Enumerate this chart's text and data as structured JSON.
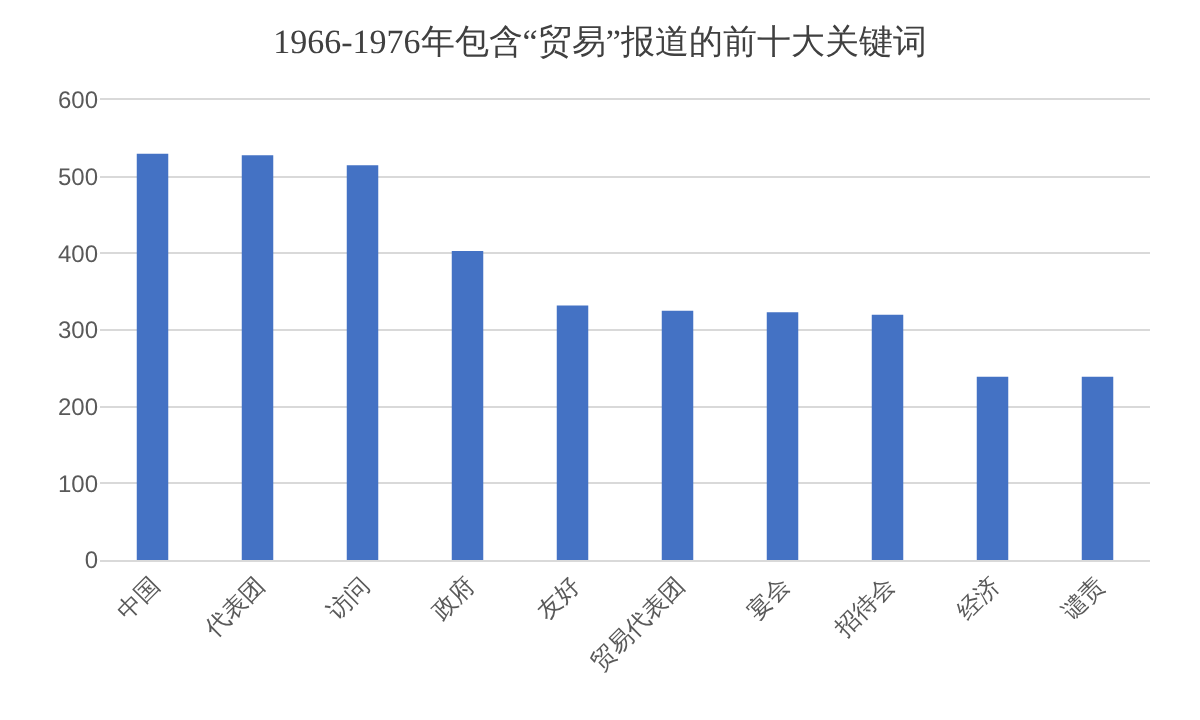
{
  "chart_data": {
    "type": "bar",
    "title": "1966-1976年包含“贸易”报道的前十大关键词",
    "categories": [
      "中国",
      "代表团",
      "访问",
      "政府",
      "友好",
      "贸易代表团",
      "宴会",
      "招待会",
      "经济",
      "谴责"
    ],
    "values": [
      530,
      528,
      515,
      403,
      332,
      325,
      323,
      320,
      239,
      239
    ],
    "color": "#4472c4",
    "ylim": [
      0,
      600
    ],
    "yticks": [
      0,
      100,
      200,
      300,
      400,
      500,
      600
    ],
    "grid": "y"
  }
}
